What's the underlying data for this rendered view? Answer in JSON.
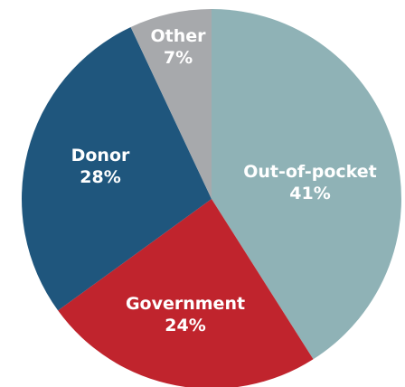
{
  "chart_data": {
    "type": "pie",
    "title": "",
    "start_angle_deg": 0,
    "direction": "clockwise",
    "slices": [
      {
        "label": "Out-of-pocket",
        "value": 41,
        "value_label": "41%",
        "color": "#8fb2b6"
      },
      {
        "label": "Government",
        "value": 24,
        "value_label": "24%",
        "color": "#c0242d"
      },
      {
        "label": "Donor",
        "value": 28,
        "value_label": "28%",
        "color": "#1f567d"
      },
      {
        "label": "Other",
        "value": 7,
        "value_label": "7%",
        "color": "#a7a9ac"
      }
    ],
    "legend": "none",
    "labels_inside": true
  }
}
